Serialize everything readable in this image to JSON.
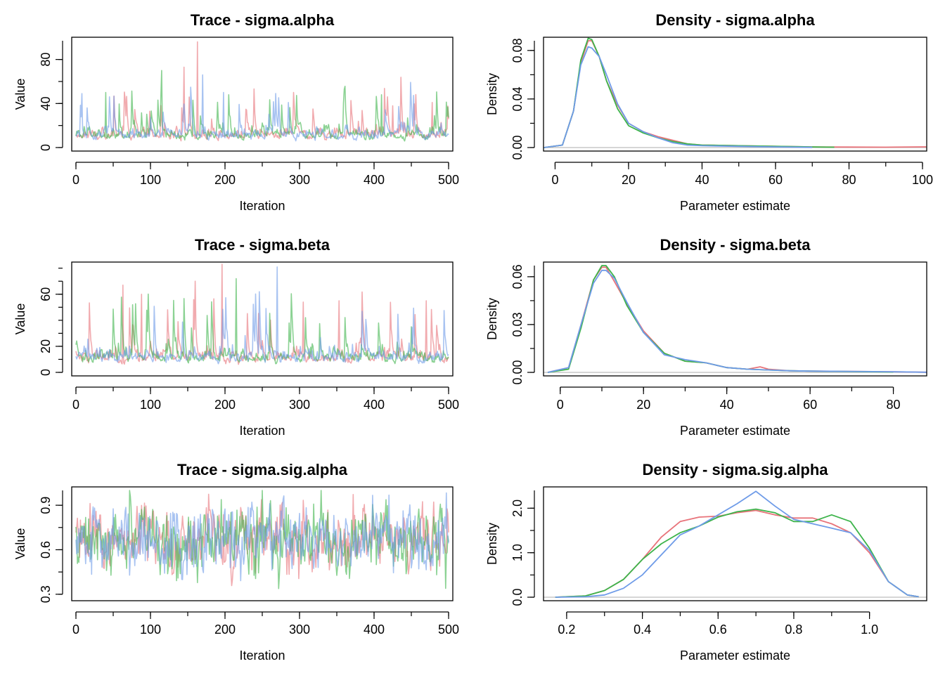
{
  "colors": {
    "chain1": "#E8737A",
    "chain2": "#3DB44B",
    "chain3": "#6E9BE8",
    "zero_line": "#BEBEBE",
    "axis": "#000000"
  },
  "chart_data": [
    {
      "type": "line",
      "title": "Trace - sigma.alpha",
      "xlabel": "Iteration",
      "ylabel": "Value",
      "xlim": [
        0,
        500
      ],
      "ylim": [
        0,
        97
      ],
      "x_ticks": [
        "0",
        "100",
        "200",
        "300",
        "400",
        "500"
      ],
      "y_ticks": [
        "0",
        "40",
        "80"
      ],
      "chains": 3,
      "iterations": 500,
      "typical_range": [
        5,
        25
      ],
      "spikes": [
        {
          "x": 8,
          "y": 49,
          "chain": 3
        },
        {
          "x": 40,
          "y": 50,
          "chain": 2
        },
        {
          "x": 115,
          "y": 70,
          "chain": 2
        },
        {
          "x": 145,
          "y": 73,
          "chain": 1
        },
        {
          "x": 163,
          "y": 96,
          "chain": 1
        },
        {
          "x": 170,
          "y": 66,
          "chain": 3
        },
        {
          "x": 198,
          "y": 50,
          "chain": 3
        },
        {
          "x": 360,
          "y": 53,
          "chain": 2
        },
        {
          "x": 410,
          "y": 48,
          "chain": 2
        },
        {
          "x": 425,
          "y": 38,
          "chain": 1
        },
        {
          "x": 478,
          "y": 41,
          "chain": 1
        }
      ]
    },
    {
      "type": "line",
      "title": "Density - sigma.alpha",
      "xlabel": "Parameter estimate",
      "ylabel": "Density",
      "xlim": [
        -2,
        100
      ],
      "ylim": [
        0,
        0.088
      ],
      "x_ticks": [
        "0",
        "20",
        "40",
        "60",
        "80",
        "100"
      ],
      "y_ticks": [
        "0.00",
        "0.04",
        "0.08"
      ],
      "series": [
        {
          "x": [
            -3,
            2,
            5,
            7,
            9,
            10,
            12,
            14,
            17,
            20,
            24,
            28,
            32,
            36,
            40,
            50,
            60,
            70,
            80,
            90,
            101
          ],
          "y": [
            0,
            0.002,
            0.03,
            0.07,
            0.088,
            0.088,
            0.075,
            0.055,
            0.035,
            0.02,
            0.013,
            0.009,
            0.006,
            0.003,
            0.002,
            0.0015,
            0.001,
            0.0005,
            0.0004,
            0.0003,
            0.0006
          ]
        },
        {
          "x": [
            -3,
            2,
            5,
            7,
            9,
            10,
            12,
            14,
            17,
            20,
            24,
            28,
            32,
            36,
            40,
            50,
            60,
            70,
            76
          ],
          "y": [
            0,
            0.002,
            0.03,
            0.072,
            0.09,
            0.089,
            0.075,
            0.055,
            0.032,
            0.018,
            0.012,
            0.008,
            0.005,
            0.003,
            0.002,
            0.0015,
            0.001,
            0.0005,
            0.0003
          ]
        },
        {
          "x": [
            -3,
            2,
            5,
            7,
            9,
            10,
            12,
            14,
            17,
            20,
            24,
            28,
            32,
            36,
            40,
            50,
            60,
            70
          ],
          "y": [
            0,
            0.002,
            0.03,
            0.068,
            0.083,
            0.082,
            0.075,
            0.06,
            0.036,
            0.02,
            0.013,
            0.008,
            0.004,
            0.002,
            0.0015,
            0.001,
            0.0005,
            0.0002
          ]
        }
      ]
    },
    {
      "type": "line",
      "title": "Trace - sigma.beta",
      "xlabel": "Iteration",
      "ylabel": "Value",
      "xlim": [
        0,
        500
      ],
      "ylim": [
        0,
        82
      ],
      "x_ticks": [
        "0",
        "100",
        "200",
        "300",
        "400",
        "500"
      ],
      "y_ticks": [
        "0",
        "20",
        "60"
      ],
      "chains": 3,
      "iterations": 500,
      "typical_range": [
        4,
        28
      ],
      "spikes": [
        {
          "x": 63,
          "y": 67,
          "chain": 1
        },
        {
          "x": 88,
          "y": 60,
          "chain": 1
        },
        {
          "x": 160,
          "y": 70,
          "chain": 1
        },
        {
          "x": 196,
          "y": 83,
          "chain": 1
        },
        {
          "x": 215,
          "y": 72,
          "chain": 2
        },
        {
          "x": 270,
          "y": 81,
          "chain": 3
        },
        {
          "x": 305,
          "y": 54,
          "chain": 1
        },
        {
          "x": 353,
          "y": 55,
          "chain": 1
        },
        {
          "x": 470,
          "y": 55,
          "chain": 1
        }
      ]
    },
    {
      "type": "line",
      "title": "Density - sigma.beta",
      "xlabel": "Parameter estimate",
      "ylabel": "Density",
      "xlim": [
        -3,
        87
      ],
      "ylim": [
        0,
        0.067
      ],
      "x_ticks": [
        "0",
        "20",
        "40",
        "60",
        "80"
      ],
      "y_ticks": [
        "0.00",
        "0.03",
        "0.06"
      ],
      "series": [
        {
          "x": [
            -3,
            2,
            5,
            8,
            10,
            11,
            13,
            16,
            20,
            25,
            30,
            35,
            40,
            45,
            48,
            50,
            55,
            60,
            70,
            80,
            88
          ],
          "y": [
            0,
            0.003,
            0.03,
            0.058,
            0.066,
            0.066,
            0.057,
            0.043,
            0.026,
            0.012,
            0.007,
            0.006,
            0.003,
            0.002,
            0.0035,
            0.002,
            0.001,
            0.0008,
            0.0006,
            0.0004,
            0.0001
          ]
        },
        {
          "x": [
            -3,
            2,
            5,
            8,
            10,
            11,
            13,
            16,
            20,
            25,
            30,
            35,
            40,
            45,
            50,
            55,
            60,
            70,
            80
          ],
          "y": [
            0,
            0.002,
            0.028,
            0.058,
            0.067,
            0.067,
            0.06,
            0.042,
            0.025,
            0.012,
            0.007,
            0.006,
            0.003,
            0.002,
            0.0015,
            0.001,
            0.0008,
            0.0005,
            0.0002
          ]
        },
        {
          "x": [
            -3,
            2,
            5,
            8,
            10,
            11,
            13,
            16,
            20,
            25,
            30,
            35,
            40,
            45,
            50,
            55,
            60,
            70,
            80,
            88
          ],
          "y": [
            0,
            0.003,
            0.03,
            0.056,
            0.064,
            0.064,
            0.059,
            0.044,
            0.025,
            0.011,
            0.008,
            0.006,
            0.003,
            0.002,
            0.0015,
            0.001,
            0.0008,
            0.0006,
            0.0004,
            0.0001
          ]
        }
      ]
    },
    {
      "type": "line",
      "title": "Trace - sigma.sig.alpha",
      "xlabel": "Iteration",
      "ylabel": "Value",
      "xlim": [
        0,
        500
      ],
      "ylim": [
        0.28,
        1.0
      ],
      "x_ticks": [
        "0",
        "100",
        "200",
        "300",
        "400",
        "500"
      ],
      "y_ticks": [
        "0.3",
        "0.6",
        "0.9"
      ],
      "chains": 3,
      "iterations": 500,
      "typical_range": [
        0.3,
        1.0
      ],
      "spikes": []
    },
    {
      "type": "line",
      "title": "Density - sigma.sig.alpha",
      "xlabel": "Parameter estimate",
      "ylabel": "Density",
      "xlim": [
        0.15,
        1.14
      ],
      "ylim": [
        0,
        2.4
      ],
      "x_ticks": [
        "0.2",
        "0.4",
        "0.6",
        "0.8",
        "1.0"
      ],
      "y_ticks": [
        "0.0",
        "1.0",
        "2.0"
      ],
      "series": [
        {
          "x": [
            0.17,
            0.25,
            0.3,
            0.35,
            0.4,
            0.45,
            0.5,
            0.55,
            0.6,
            0.65,
            0.7,
            0.75,
            0.8,
            0.85,
            0.9,
            0.95,
            1.0,
            1.05,
            1.1,
            1.13
          ],
          "y": [
            0.0,
            0.03,
            0.15,
            0.4,
            0.85,
            1.35,
            1.7,
            1.8,
            1.82,
            1.9,
            1.95,
            1.85,
            1.78,
            1.78,
            1.65,
            1.45,
            1.0,
            0.35,
            0.05,
            0.01
          ]
        },
        {
          "x": [
            0.17,
            0.25,
            0.3,
            0.35,
            0.4,
            0.45,
            0.5,
            0.55,
            0.6,
            0.65,
            0.7,
            0.75,
            0.8,
            0.85,
            0.9,
            0.95,
            1.0,
            1.05,
            1.1,
            1.13
          ],
          "y": [
            0.0,
            0.03,
            0.15,
            0.4,
            0.85,
            1.2,
            1.45,
            1.6,
            1.8,
            1.92,
            1.98,
            1.9,
            1.7,
            1.7,
            1.85,
            1.7,
            1.1,
            0.35,
            0.05,
            0.01
          ]
        },
        {
          "x": [
            0.17,
            0.25,
            0.3,
            0.35,
            0.4,
            0.45,
            0.5,
            0.55,
            0.6,
            0.65,
            0.7,
            0.75,
            0.8,
            0.85,
            0.9,
            0.95,
            1.0,
            1.05,
            1.1,
            1.13
          ],
          "y": [
            0.0,
            0.01,
            0.05,
            0.2,
            0.5,
            0.95,
            1.4,
            1.6,
            1.85,
            2.1,
            2.38,
            2.05,
            1.75,
            1.65,
            1.55,
            1.45,
            1.05,
            0.35,
            0.05,
            0.01
          ]
        }
      ]
    }
  ]
}
